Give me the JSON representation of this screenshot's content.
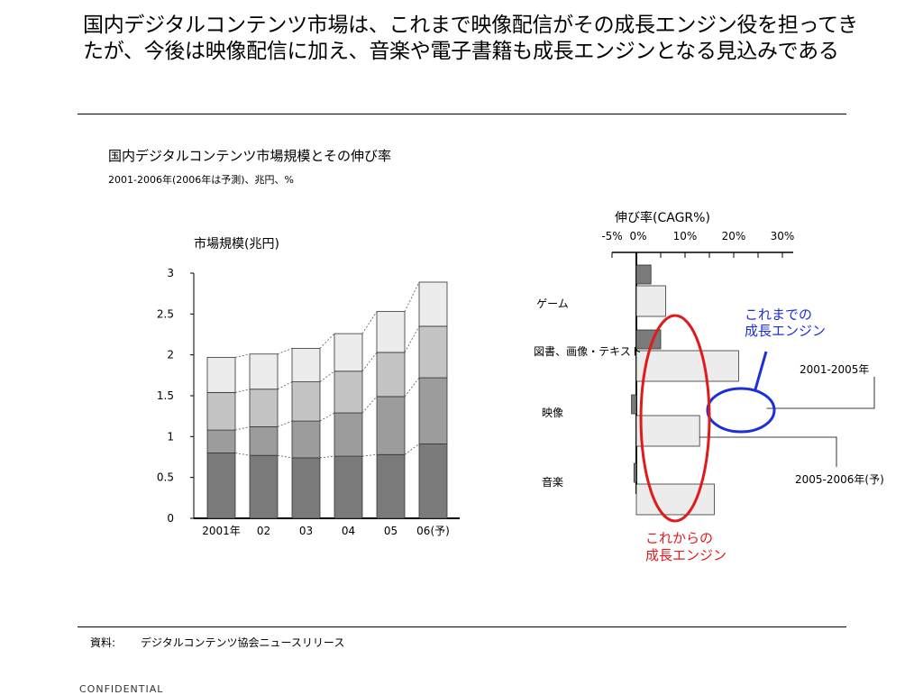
{
  "headline": "国内デジタルコンテンツ市場は、これまで映像配信がその成長エンジン役を担ってきたが、今後は映像配信に加え、音楽や電子書籍も成長エンジンとなる見込みである",
  "chart_title": "国内デジタルコンテンツ市場規模とその伸び率",
  "chart_subtitle": "2001-2006年(2006年は予測)、兆円、%",
  "source": {
    "label": "資料:",
    "text": "デジタルコンテンツ協会ニュースリリース"
  },
  "footer": "CONFIDENTIAL",
  "chart_data": [
    {
      "type": "bar",
      "stacked": true,
      "title": "市場規模(兆円)",
      "categories": [
        "2001年",
        "02",
        "03",
        "04",
        "05",
        "06(予)"
      ],
      "ylim": [
        0,
        3
      ],
      "yticks": [
        "0",
        "0.5",
        "1",
        "1.5",
        "2",
        "2.5",
        "3"
      ],
      "series": [
        {
          "values": [
            0.8,
            0.77,
            0.74,
            0.76,
            0.78,
            0.91
          ],
          "color": "#7a7a7a"
        },
        {
          "values": [
            0.28,
            0.35,
            0.45,
            0.53,
            0.71,
            0.81
          ],
          "color": "#9c9c9c"
        },
        {
          "values": [
            0.46,
            0.46,
            0.48,
            0.51,
            0.54,
            0.63
          ],
          "color": "#c4c4c4"
        },
        {
          "values": [
            0.43,
            0.43,
            0.41,
            0.46,
            0.5,
            0.54
          ],
          "color": "#ececec"
        }
      ],
      "dashed_connectors": true
    },
    {
      "type": "bar",
      "orientation": "horizontal",
      "title": "伸び率(CAGR%)",
      "xlim": [
        -5,
        30
      ],
      "xticks": [
        "-5%",
        "0%",
        "10%",
        "20%",
        "30%"
      ],
      "categories": [
        "ゲーム",
        "図書、画像・テキスト",
        "映像",
        "音楽"
      ],
      "series": [
        {
          "name": "2001-2005年",
          "values": [
            3,
            5,
            -1,
            -0.5
          ],
          "color": "#7a7a7a"
        },
        {
          "name": "2005-2006年(予)",
          "values": [
            6,
            21,
            13,
            16
          ],
          "color": "#ececec"
        }
      ],
      "annotations": [
        {
          "text": [
            "これまでの",
            "成長エンジン"
          ],
          "color": "#1c2fd8"
        },
        {
          "text": [
            "これからの",
            "成長エンジン"
          ],
          "color": "#e01b1b"
        }
      ]
    }
  ]
}
